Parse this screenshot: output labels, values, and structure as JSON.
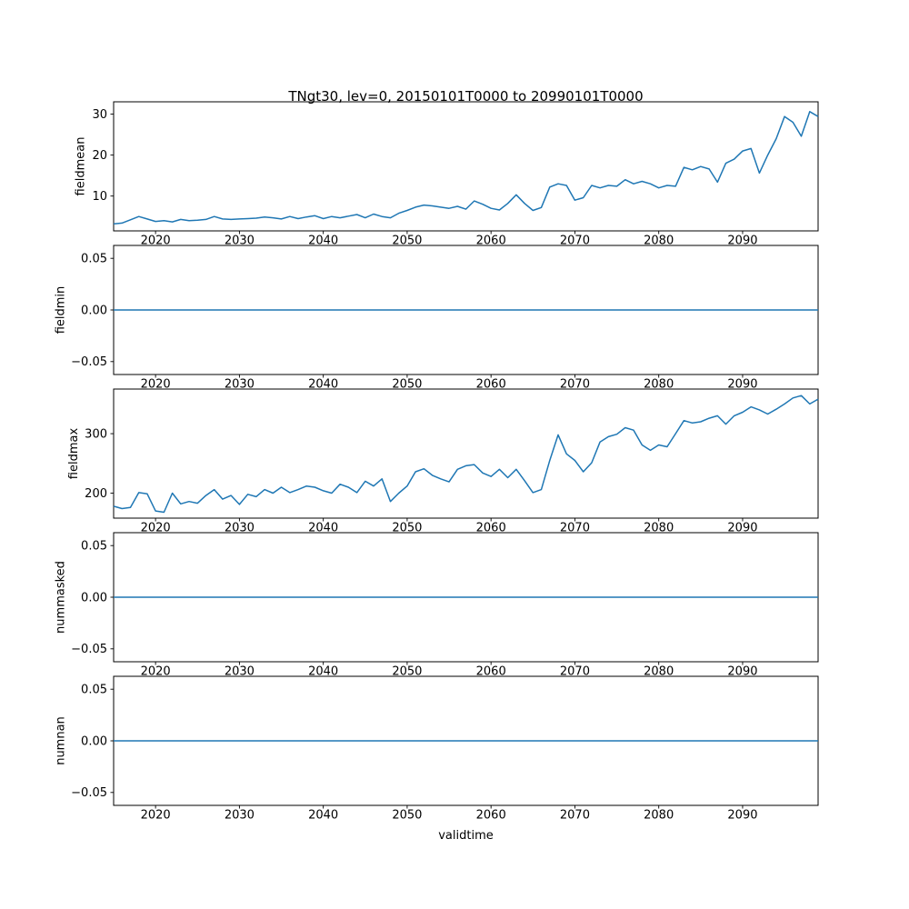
{
  "figure": {
    "background_color": "#ffffff",
    "spine_color": "#000000",
    "text_color": "#000000"
  },
  "chart_data": {
    "type": "line",
    "title": "TNgt30, lev=0, 20150101T0000 to 20990101T0000",
    "xlabel": "validtime",
    "line_color": "#1f77b4",
    "grid": false,
    "legend": "none",
    "xlim": [
      2015,
      2099
    ],
    "xticks": [
      2020,
      2030,
      2040,
      2050,
      2060,
      2070,
      2080,
      2090
    ],
    "xtick_labels": [
      "2020",
      "2030",
      "2040",
      "2050",
      "2060",
      "2070",
      "2080",
      "2090"
    ],
    "x": [
      2015,
      2016,
      2017,
      2018,
      2019,
      2020,
      2021,
      2022,
      2023,
      2024,
      2025,
      2026,
      2027,
      2028,
      2029,
      2030,
      2031,
      2032,
      2033,
      2034,
      2035,
      2036,
      2037,
      2038,
      2039,
      2040,
      2041,
      2042,
      2043,
      2044,
      2045,
      2046,
      2047,
      2048,
      2049,
      2050,
      2051,
      2052,
      2053,
      2054,
      2055,
      2056,
      2057,
      2058,
      2059,
      2060,
      2061,
      2062,
      2063,
      2064,
      2065,
      2066,
      2067,
      2068,
      2069,
      2070,
      2071,
      2072,
      2073,
      2074,
      2075,
      2076,
      2077,
      2078,
      2079,
      2080,
      2081,
      2082,
      2083,
      2084,
      2085,
      2086,
      2087,
      2088,
      2089,
      2090,
      2091,
      2092,
      2093,
      2094,
      2095,
      2096,
      2097,
      2098,
      2099
    ],
    "panels": [
      {
        "ylabel": "fieldmean",
        "yticks": [
          10,
          20,
          30
        ],
        "ytick_labels": [
          "10",
          "20",
          "30"
        ],
        "ylim": [
          1.5,
          33
        ],
        "values": [
          3.2,
          3.4,
          4.2,
          5.0,
          4.4,
          3.8,
          4.0,
          3.7,
          4.3,
          4.0,
          4.1,
          4.3,
          5.0,
          4.4,
          4.3,
          4.4,
          4.5,
          4.6,
          4.9,
          4.7,
          4.4,
          5.0,
          4.5,
          4.9,
          5.2,
          4.5,
          5.0,
          4.7,
          5.1,
          5.5,
          4.7,
          5.6,
          5.0,
          4.7,
          5.8,
          6.5,
          7.3,
          7.8,
          7.6,
          7.3,
          7.0,
          7.5,
          6.8,
          8.8,
          8.0,
          7.0,
          6.6,
          8.2,
          10.3,
          8.2,
          6.5,
          7.2,
          12.2,
          13.0,
          12.6,
          9.0,
          9.6,
          12.6,
          12.0,
          12.6,
          12.4,
          14.0,
          13.0,
          13.6,
          13.0,
          12.0,
          12.6,
          12.4,
          17.0,
          16.4,
          17.2,
          16.6,
          13.4,
          18.0,
          19.0,
          21.0,
          21.6,
          15.6,
          20.0,
          24.0,
          29.4,
          28.0,
          24.6,
          30.6,
          29.4
        ]
      },
      {
        "ylabel": "fieldmin",
        "yticks": [
          -0.05,
          0.0,
          0.05
        ],
        "ytick_labels": [
          "−0.05",
          "0.00",
          "0.05"
        ],
        "ylim": [
          -0.0625,
          0.0625
        ],
        "constant": 0.0
      },
      {
        "ylabel": "fieldmax",
        "yticks": [
          200,
          300
        ],
        "ytick_labels": [
          "200",
          "300"
        ],
        "ylim": [
          158,
          375
        ],
        "values": [
          178,
          174,
          176,
          201,
          199,
          170,
          168,
          200,
          182,
          186,
          183,
          196,
          206,
          190,
          196,
          181,
          198,
          194,
          206,
          200,
          210,
          201,
          206,
          212,
          210,
          204,
          200,
          215,
          210,
          201,
          220,
          212,
          224,
          186,
          200,
          212,
          236,
          241,
          230,
          224,
          219,
          240,
          246,
          248,
          234,
          228,
          240,
          226,
          240,
          221,
          201,
          206,
          255,
          298,
          266,
          255,
          236,
          251,
          286,
          295,
          299,
          310,
          306,
          281,
          272,
          281,
          278,
          300,
          322,
          318,
          320,
          326,
          330,
          316,
          330,
          336,
          345,
          340,
          333,
          341,
          350,
          360,
          364,
          350,
          358
        ]
      },
      {
        "ylabel": "nummasked",
        "yticks": [
          -0.05,
          0.0,
          0.05
        ],
        "ytick_labels": [
          "−0.05",
          "0.00",
          "0.05"
        ],
        "ylim": [
          -0.0625,
          0.0625
        ],
        "constant": 0.0
      },
      {
        "ylabel": "numnan",
        "yticks": [
          -0.05,
          0.0,
          0.05
        ],
        "ytick_labels": [
          "−0.05",
          "0.00",
          "0.05"
        ],
        "ylim": [
          -0.0625,
          0.0625
        ],
        "constant": 0.0
      }
    ]
  }
}
